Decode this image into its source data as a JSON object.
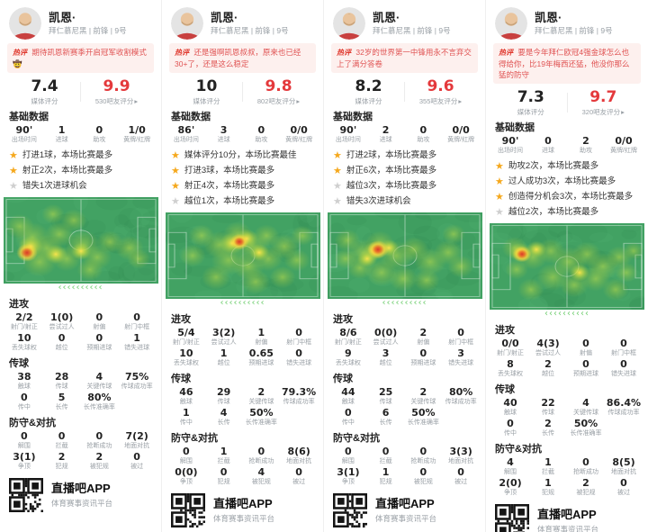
{
  "app": {
    "name": "直播吧APP",
    "tagline": "体育赛事资讯平台"
  },
  "colors": {
    "accent_red": "#e4393c",
    "banner_bg": "#fdf0ee",
    "banner_text": "#e05353",
    "star_gold": "#f5a81d",
    "star_gray": "#cfcfcf",
    "pitch_green": "#42a263",
    "heat_hotspot_red": "#d93a2b",
    "chevron_green": "#74cf74"
  },
  "shared": {
    "player_name": "凯恩·",
    "player_meta": "拜仁慕尼黑 | 前锋 | 9号",
    "badge_label": "热评",
    "media_rating_label": "媒体评分",
    "sections": {
      "basic": "基础数据",
      "attack": "进攻",
      "passing": "传球",
      "defense": "防守&对抗"
    },
    "base_labels": [
      "出场时间",
      "进球",
      "助攻",
      "黄牌/红牌"
    ],
    "attack_labels_row1": [
      "射门/射正",
      "尝试过人",
      "射偏",
      "射门中框"
    ],
    "attack_labels_row2": [
      "丢失球权",
      "越位",
      "预期进球",
      "错失进球"
    ],
    "pass_labels_row1": [
      "触球",
      "传球",
      "关键传球",
      "传球成功率"
    ],
    "pass_labels_row2": [
      "传中",
      "长传",
      "长传准确率"
    ],
    "def_labels_row1": [
      "解围",
      "拦截",
      "抢断成功",
      "地面对抗"
    ],
    "def_labels_row2": [
      "争顶",
      "犯规",
      "被犯规",
      "被过"
    ],
    "icons": {
      "star": "★",
      "arrow": "▸",
      "chevrons": "‹‹‹‹‹‹‹‹‹‹"
    }
  },
  "cards": [
    {
      "comment": "期待凯恩新赛季开启冠军收割模式🤠",
      "media_rating": "7.4",
      "fan_rating": "9.9",
      "fan_rating_label": "530吧友评分",
      "base": [
        "90'",
        "1",
        "0",
        "1/0"
      ],
      "bullets": [
        {
          "type": "gold",
          "text": "打进1球，本场比赛最多"
        },
        {
          "type": "gold",
          "text": "射正2次，本场比赛最多"
        },
        {
          "type": "gray",
          "text": "错失1次进球机会"
        }
      ],
      "attack_r1": [
        "2/2",
        "1(0)",
        "0",
        "0"
      ],
      "attack_r2": [
        "10",
        "0",
        "0",
        "1"
      ],
      "pass_r1": [
        "38",
        "28",
        "4",
        "75%"
      ],
      "pass_r2": [
        "0",
        "5",
        "80%"
      ],
      "def_r1": [
        "0",
        "0",
        "0",
        "7(2)"
      ],
      "def_r2": [
        "3(1)",
        "2",
        "2",
        "0"
      ]
    },
    {
      "comment": "还是强啊凯恩叔叔，原来也已经30+了，还是这么稳定",
      "media_rating": "10",
      "fan_rating": "9.8",
      "fan_rating_label": "802吧友评分",
      "base": [
        "86'",
        "3",
        "0",
        "0/0"
      ],
      "bullets": [
        {
          "type": "gold",
          "text": "媒体评分10分，本场比赛最佳"
        },
        {
          "type": "gold",
          "text": "打进3球，本场比赛最多"
        },
        {
          "type": "gold",
          "text": "射正4次，本场比赛最多"
        },
        {
          "type": "gray",
          "text": "越位1次，本场比赛最多"
        }
      ],
      "attack_r1": [
        "5/4",
        "3(2)",
        "1",
        "0"
      ],
      "attack_r2": [
        "10",
        "1",
        "0.65",
        "0"
      ],
      "pass_r1": [
        "46",
        "29",
        "2",
        "79.3%"
      ],
      "pass_r2": [
        "1",
        "4",
        "50%"
      ],
      "def_r1": [
        "0",
        "1",
        "0",
        "8(6)"
      ],
      "def_r2": [
        "0(0)",
        "0",
        "4",
        "0"
      ]
    },
    {
      "comment": "32岁的世界第一中锋用永不言弃交上了满分答卷",
      "media_rating": "8.2",
      "fan_rating": "9.6",
      "fan_rating_label": "355吧友评分",
      "base": [
        "90'",
        "2",
        "0",
        "0/0"
      ],
      "bullets": [
        {
          "type": "gold",
          "text": "打进2球，本场比赛最多"
        },
        {
          "type": "gold",
          "text": "射正6次，本场比赛最多"
        },
        {
          "type": "gray",
          "text": "越位3次，本场比赛最多"
        },
        {
          "type": "gray",
          "text": "错失3次进球机会"
        }
      ],
      "attack_r1": [
        "8/6",
        "0(0)",
        "2",
        "0"
      ],
      "attack_r2": [
        "9",
        "3",
        "0",
        "3"
      ],
      "pass_r1": [
        "44",
        "25",
        "2",
        "80%"
      ],
      "pass_r2": [
        "0",
        "6",
        "50%"
      ],
      "def_r1": [
        "0",
        "0",
        "0",
        "3(3)"
      ],
      "def_r2": [
        "3(1)",
        "1",
        "0",
        "0"
      ]
    },
    {
      "comment": "要是今年拜仁欧冠4强金球怎么也得给你，比19年梅西还猛，他没你那么猛的防守",
      "media_rating": "7.3",
      "fan_rating": "9.7",
      "fan_rating_label": "320吧友评分",
      "base": [
        "90'",
        "0",
        "2",
        "0/0"
      ],
      "bullets": [
        {
          "type": "gold",
          "text": "助攻2次，本场比赛最多"
        },
        {
          "type": "gold",
          "text": "过人成功3次，本场比赛最多"
        },
        {
          "type": "gold",
          "text": "创造得分机会3次，本场比赛最多"
        },
        {
          "type": "gray",
          "text": "越位2次，本场比赛最多"
        }
      ],
      "attack_r1": [
        "0/0",
        "4(3)",
        "0",
        "0"
      ],
      "attack_r2": [
        "8",
        "2",
        "0",
        "0"
      ],
      "pass_r1": [
        "40",
        "22",
        "4",
        "86.4%"
      ],
      "pass_r2": [
        "0",
        "2",
        "50%"
      ],
      "def_r1": [
        "4",
        "1",
        "0",
        "8(5)"
      ],
      "def_r2": [
        "2(0)",
        "1",
        "2",
        "0"
      ]
    }
  ]
}
